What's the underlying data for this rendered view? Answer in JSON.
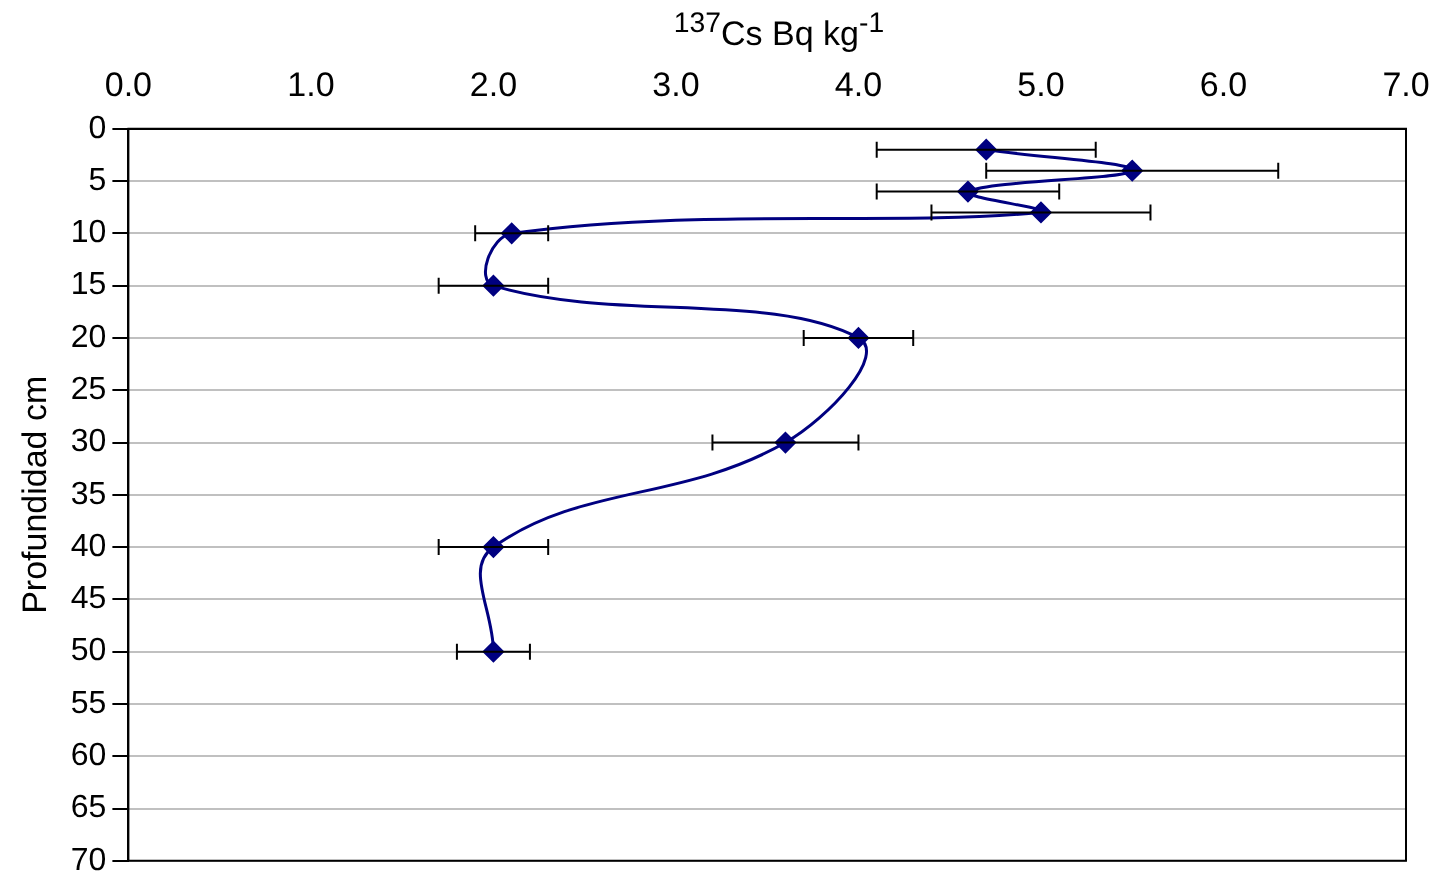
{
  "chart_data": {
    "type": "line",
    "xlabel": "$^{137}$Cs Bq kg$^{-1}$",
    "ylabel": "Profundidad cm",
    "xlim": [
      0,
      7
    ],
    "xticks": [
      {
        "value": 0,
        "label": "0.0"
      },
      {
        "value": 1,
        "label": "1.0"
      },
      {
        "value": 2,
        "label": "2.0"
      },
      {
        "value": 3,
        "label": "3.0"
      },
      {
        "value": 4,
        "label": "4.0"
      },
      {
        "value": 5,
        "label": "5.0"
      },
      {
        "value": 6,
        "label": "6.0"
      },
      {
        "value": 7,
        "label": "7.0"
      }
    ],
    "ylim": [
      70,
      0
    ],
    "yticks": [
      0,
      5,
      10,
      15,
      20,
      25,
      30,
      35,
      40,
      45,
      50,
      55,
      60,
      65,
      70
    ],
    "grid": "y",
    "legend": false,
    "marker": "diamond",
    "line_style": "solid",
    "series": [
      {
        "color": "#000080",
        "x": [
          4.7,
          5.5,
          4.6,
          5.0,
          2.1,
          2.0,
          4.0,
          3.6,
          2.0,
          2.0
        ],
        "values": [
          2,
          4,
          6,
          8,
          10,
          15,
          20,
          30,
          40,
          50
        ],
        "xerrors": [
          0.6,
          0.8,
          0.5,
          0.6,
          0.2,
          0.3,
          0.3,
          0.4,
          0.3,
          0.2
        ]
      }
    ]
  }
}
